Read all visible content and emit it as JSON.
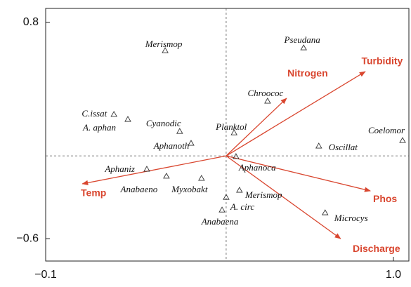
{
  "chart_data": {
    "type": "scatter",
    "xlim": [
      -0.1,
      1.049
    ],
    "ylim": [
      -0.745,
      0.891
    ],
    "xticks": [
      {
        "value": -0.1,
        "label": "−0.1"
      },
      {
        "value": 1.0,
        "label": "1.0"
      }
    ],
    "yticks": [
      {
        "value": -0.6,
        "label": "−0.6"
      },
      0.8
    ],
    "origin": {
      "x": 0.471,
      "y": -0.064
    },
    "points": {
      "color": "#333333",
      "labels": [
        "Merismop",
        "Pseudana",
        "Chroococ",
        "C.issat",
        "A. aphan",
        "Cyanodic",
        "Aphanoth",
        "Planktol",
        "Coelomor",
        "Oscillat",
        "Aphanoca",
        "Aphaniz",
        "Anabaeno",
        "Myxobakt",
        "Merismop",
        "A. circ",
        "Anabaena",
        "Microcys"
      ],
      "x": [
        0.278,
        0.716,
        0.602,
        0.116,
        0.16,
        0.324,
        0.36,
        0.496,
        1.029,
        0.764,
        0.502,
        0.22,
        0.282,
        0.393,
        0.513,
        0.471,
        0.458,
        0.784
      ],
      "y": [
        0.618,
        0.636,
        0.291,
        0.205,
        0.173,
        0.095,
        0.018,
        0.086,
        0.036,
        0.0,
        -0.068,
        -0.15,
        -0.195,
        -0.209,
        -0.286,
        -0.332,
        -0.414,
        -0.432
      ]
    },
    "vectors": {
      "color": "#d9462f",
      "names": [
        "Turbidity",
        "Nitrogen",
        "Phos",
        "Discharge",
        "Temp"
      ],
      "x": [
        0.911,
        0.662,
        0.927,
        0.833,
        0.016
      ],
      "y": [
        0.482,
        0.309,
        -0.291,
        -0.6,
        -0.245
      ]
    }
  }
}
